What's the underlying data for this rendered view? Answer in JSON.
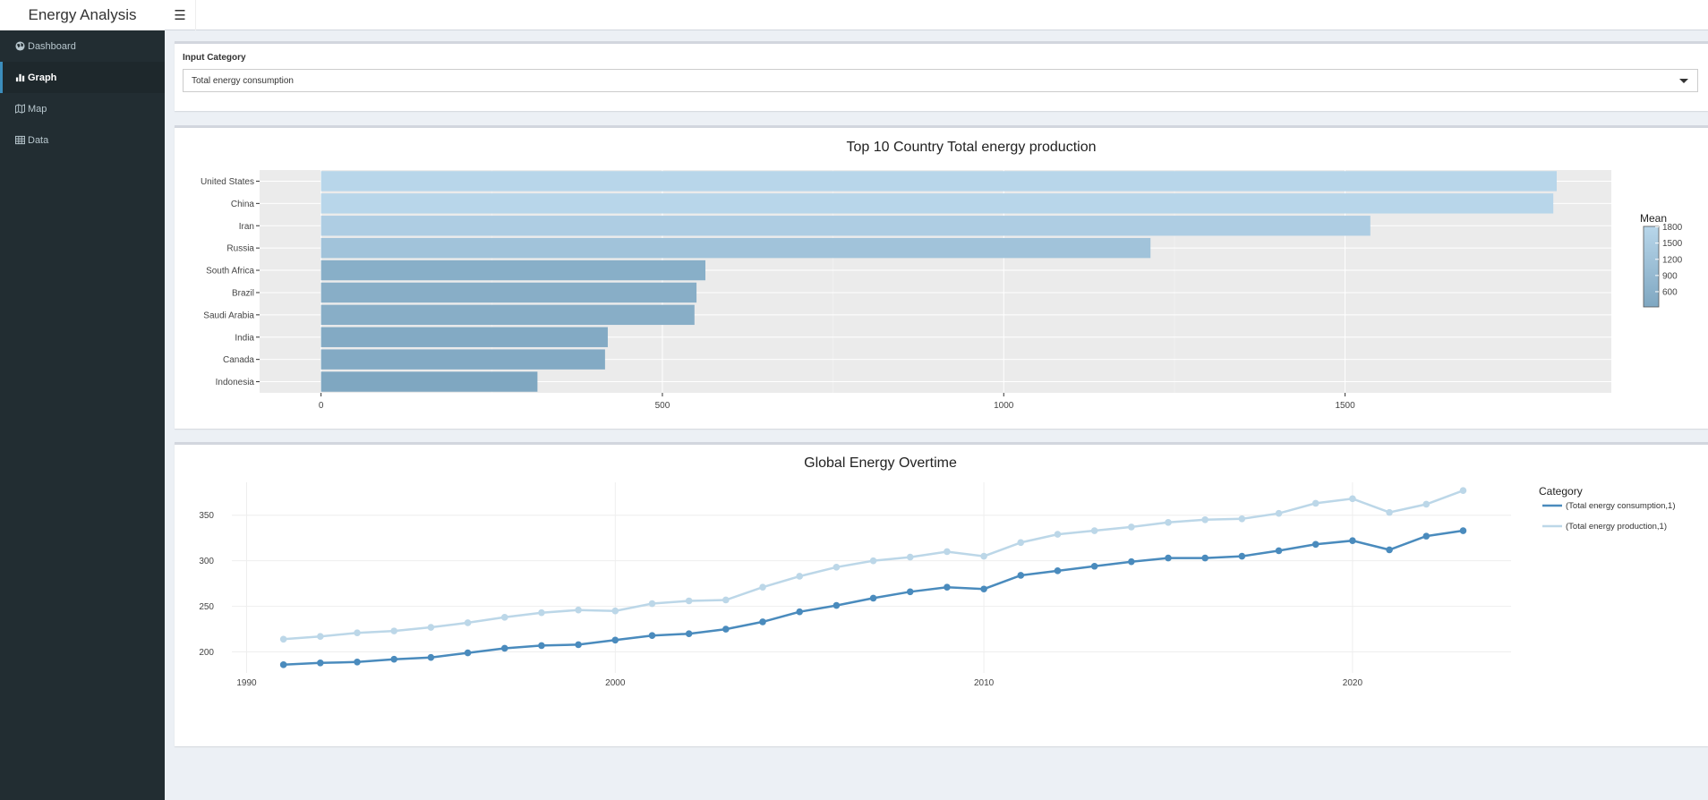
{
  "app": {
    "title": "Energy Analysis",
    "toggle_icon": "hamburger-icon"
  },
  "sidebar": {
    "items": [
      {
        "label": "Dashboard",
        "icon": "globe-icon",
        "active": false
      },
      {
        "label": "Graph",
        "icon": "bar-chart-icon",
        "active": true
      },
      {
        "label": "Map",
        "icon": "map-icon",
        "active": false
      },
      {
        "label": "Data",
        "icon": "table-icon",
        "active": false
      }
    ]
  },
  "input": {
    "label": "Input Category",
    "selected": "Total energy consumption"
  },
  "chart_data": [
    {
      "type": "bar",
      "orientation": "horizontal",
      "title": "Top 10 Country Total energy production",
      "categories": [
        "United States",
        "China",
        "Iran",
        "Russia",
        "South Africa",
        "Brazil",
        "Saudi Arabia",
        "India",
        "Canada",
        "Indonesia"
      ],
      "values": [
        1810,
        1805,
        1537,
        1215,
        563,
        550,
        547,
        420,
        416,
        317
      ],
      "xticks": [
        0,
        500,
        1000,
        1500
      ],
      "xlim": [
        -90,
        1890
      ],
      "grid": true,
      "legend": {
        "title": "Mean",
        "ticks": [
          1800,
          1500,
          1200,
          900,
          600
        ],
        "range": [
          317,
          1810
        ],
        "placement": "right"
      },
      "colors": {
        "low": "#7fa7c1",
        "high": "#b8d6ea",
        "panel": "#ebebeb"
      }
    },
    {
      "type": "line",
      "title": "Global Energy Overtime",
      "x": [
        1991,
        1992,
        1993,
        1994,
        1995,
        1996,
        1997,
        1998,
        1999,
        2000,
        2001,
        2002,
        2003,
        2004,
        2005,
        2006,
        2007,
        2008,
        2009,
        2010,
        2011,
        2012,
        2013,
        2014,
        2015,
        2016,
        2017,
        2018,
        2019,
        2020,
        2021,
        2022,
        2023
      ],
      "series": [
        {
          "name": "(Total energy consumption,1)",
          "color": "#4a8bbd",
          "values": [
            186,
            188,
            189,
            192,
            194,
            199,
            204,
            207,
            208,
            213,
            218,
            220,
            225,
            233,
            244,
            251,
            259,
            266,
            271,
            269,
            284,
            289,
            294,
            299,
            303,
            303,
            305,
            311,
            318,
            322,
            312,
            327,
            333
          ]
        },
        {
          "name": "(Total energy production,1)",
          "color": "#bcd7e8",
          "values": [
            214,
            217,
            221,
            223,
            227,
            232,
            238,
            243,
            246,
            245,
            253,
            256,
            257,
            271,
            283,
            293,
            300,
            304,
            310,
            305,
            320,
            329,
            333,
            337,
            342,
            345,
            346,
            352,
            363,
            368,
            353,
            362,
            377
          ]
        }
      ],
      "xticks": [
        1990,
        2000,
        2010,
        2020
      ],
      "yticks": [
        200,
        250,
        300,
        350
      ],
      "xlim": [
        1989.6,
        2024.3
      ],
      "ylim": [
        177,
        386
      ],
      "grid": true,
      "legend": {
        "title": "Category",
        "placement": "right"
      }
    }
  ]
}
